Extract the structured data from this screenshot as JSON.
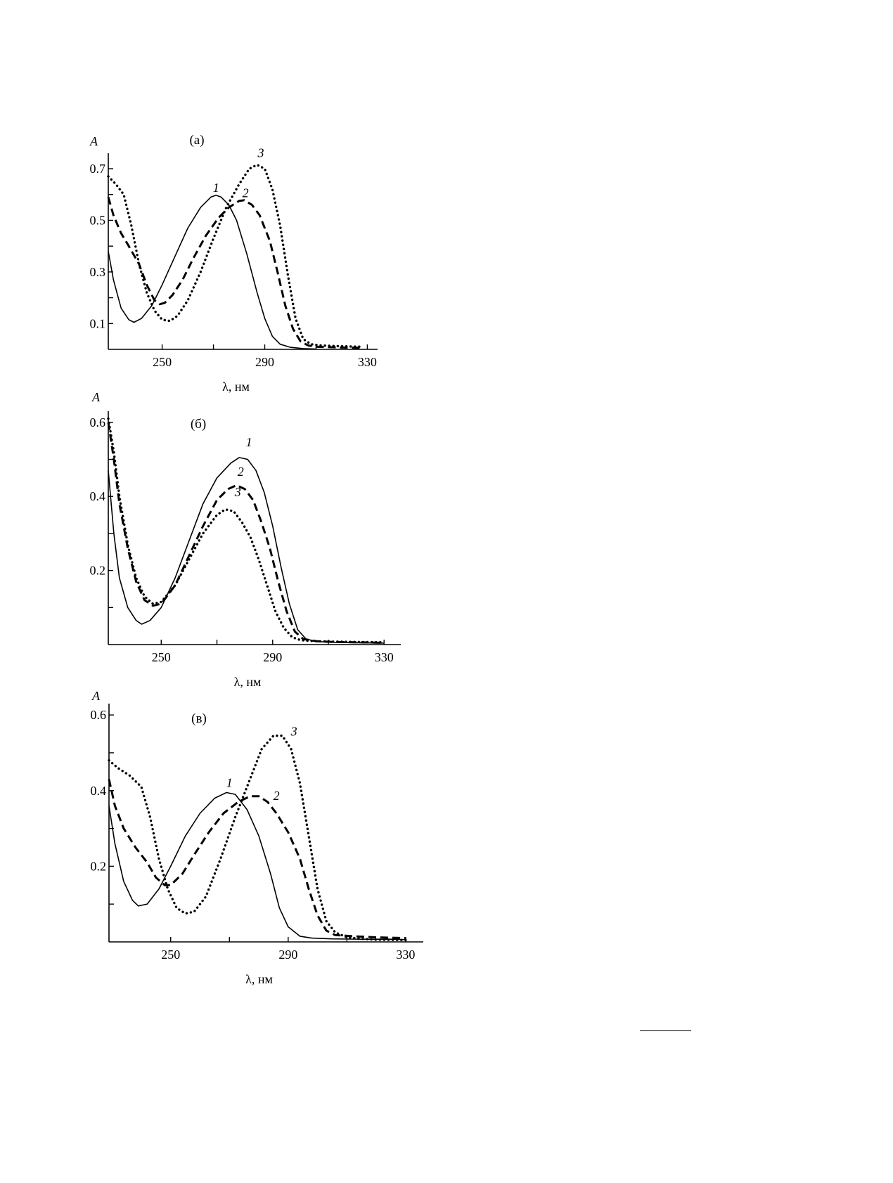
{
  "chart_data": [
    {
      "type": "line",
      "title": "(а)",
      "ylabel": "A",
      "xlabel": "λ, нм",
      "xlim": [
        229,
        334
      ],
      "ylim": [
        0,
        0.76
      ],
      "x_ticks": [
        250,
        290,
        330
      ],
      "y_ticks": [
        0.1,
        0.3,
        0.5,
        0.7
      ],
      "y_minor_ticks": [
        0.2,
        0.4,
        0.6
      ],
      "x_minor_ticks": [
        270,
        310
      ],
      "grid": false,
      "legend": "none",
      "series": [
        {
          "label": "1",
          "style": "solid",
          "label_at": [
            271,
            0.61
          ],
          "points": [
            [
              229,
              0.38
            ],
            [
              231,
              0.27
            ],
            [
              234,
              0.16
            ],
            [
              237,
              0.115
            ],
            [
              239,
              0.105
            ],
            [
              242,
              0.12
            ],
            [
              246,
              0.17
            ],
            [
              250,
              0.25
            ],
            [
              255,
              0.36
            ],
            [
              260,
              0.47
            ],
            [
              265,
              0.55
            ],
            [
              269,
              0.59
            ],
            [
              271,
              0.597
            ],
            [
              273,
              0.59
            ],
            [
              276,
              0.56
            ],
            [
              279,
              0.5
            ],
            [
              283,
              0.37
            ],
            [
              287,
              0.22
            ],
            [
              290,
              0.12
            ],
            [
              293,
              0.05
            ],
            [
              296,
              0.02
            ],
            [
              300,
              0.008
            ],
            [
              305,
              0.003
            ],
            [
              310,
              0.001
            ]
          ]
        },
        {
          "label": "2",
          "style": "dashed",
          "label_at": [
            282.5,
            0.59
          ],
          "points": [
            [
              229,
              0.59
            ],
            [
              231,
              0.52
            ],
            [
              234,
              0.45
            ],
            [
              237,
              0.4
            ],
            [
              241,
              0.33
            ],
            [
              244,
              0.25
            ],
            [
              247,
              0.19
            ],
            [
              249,
              0.175
            ],
            [
              251,
              0.18
            ],
            [
              254,
              0.21
            ],
            [
              258,
              0.27
            ],
            [
              262,
              0.35
            ],
            [
              267,
              0.44
            ],
            [
              272,
              0.51
            ],
            [
              276,
              0.55
            ],
            [
              280,
              0.575
            ],
            [
              282,
              0.578
            ],
            [
              285,
              0.56
            ],
            [
              288,
              0.52
            ],
            [
              292,
              0.42
            ],
            [
              295,
              0.3
            ],
            [
              298,
              0.17
            ],
            [
              301,
              0.08
            ],
            [
              304,
              0.03
            ],
            [
              307,
              0.015
            ],
            [
              310,
              0.01
            ],
            [
              320,
              0.007
            ],
            [
              328,
              0.006
            ]
          ]
        },
        {
          "label": "3",
          "style": "dotted",
          "label_at": [
            288.5,
            0.745
          ],
          "points": [
            [
              229,
              0.67
            ],
            [
              232,
              0.64
            ],
            [
              235,
              0.6
            ],
            [
              238,
              0.48
            ],
            [
              241,
              0.33
            ],
            [
              244,
              0.22
            ],
            [
              247,
              0.15
            ],
            [
              250,
              0.115
            ],
            [
              253,
              0.11
            ],
            [
              256,
              0.13
            ],
            [
              260,
              0.19
            ],
            [
              265,
              0.3
            ],
            [
              270,
              0.43
            ],
            [
              275,
              0.55
            ],
            [
              280,
              0.64
            ],
            [
              284,
              0.7
            ],
            [
              287,
              0.715
            ],
            [
              290,
              0.7
            ],
            [
              293,
              0.62
            ],
            [
              296,
              0.48
            ],
            [
              299,
              0.29
            ],
            [
              302,
              0.12
            ],
            [
              305,
              0.04
            ],
            [
              308,
              0.02
            ],
            [
              312,
              0.015
            ],
            [
              320,
              0.012
            ],
            [
              328,
              0.01
            ]
          ]
        }
      ]
    },
    {
      "type": "line",
      "title": "(б)",
      "ylabel": "A",
      "xlabel": "λ, нм",
      "xlim": [
        231,
        336
      ],
      "ylim": [
        0,
        0.63
      ],
      "x_ticks": [
        250,
        290,
        330
      ],
      "y_ticks": [
        0.2,
        0.4,
        0.6
      ],
      "y_minor_ticks": [
        0.1,
        0.3,
        0.5
      ],
      "x_minor_ticks": [
        270,
        310
      ],
      "grid": false,
      "legend": "none",
      "series": [
        {
          "label": "1",
          "style": "solid",
          "label_at": [
            281.5,
            0.535
          ],
          "points": [
            [
              231,
              0.47
            ],
            [
              233,
              0.3
            ],
            [
              235,
              0.18
            ],
            [
              238,
              0.1
            ],
            [
              241,
              0.065
            ],
            [
              243,
              0.055
            ],
            [
              246,
              0.065
            ],
            [
              250,
              0.1
            ],
            [
              255,
              0.18
            ],
            [
              260,
              0.28
            ],
            [
              265,
              0.38
            ],
            [
              270,
              0.45
            ],
            [
              275,
              0.49
            ],
            [
              278,
              0.505
            ],
            [
              281,
              0.5
            ],
            [
              284,
              0.47
            ],
            [
              287,
              0.41
            ],
            [
              290,
              0.32
            ],
            [
              293,
              0.21
            ],
            [
              296,
              0.11
            ],
            [
              299,
              0.04
            ],
            [
              302,
              0.015
            ],
            [
              306,
              0.008
            ],
            [
              312,
              0.006
            ],
            [
              320,
              0.005
            ],
            [
              330,
              0.004
            ]
          ]
        },
        {
          "label": "2",
          "style": "dashed",
          "label_at": [
            278.5,
            0.455
          ],
          "points": [
            [
              231,
              0.6
            ],
            [
              233,
              0.5
            ],
            [
              235,
              0.38
            ],
            [
              238,
              0.26
            ],
            [
              241,
              0.17
            ],
            [
              244,
              0.12
            ],
            [
              247,
              0.105
            ],
            [
              250,
              0.11
            ],
            [
              255,
              0.16
            ],
            [
              260,
              0.24
            ],
            [
              265,
              0.32
            ],
            [
              270,
              0.39
            ],
            [
              274,
              0.42
            ],
            [
              277,
              0.43
            ],
            [
              280,
              0.42
            ],
            [
              283,
              0.39
            ],
            [
              286,
              0.33
            ],
            [
              289,
              0.26
            ],
            [
              292,
              0.17
            ],
            [
              295,
              0.09
            ],
            [
              298,
              0.035
            ],
            [
              301,
              0.015
            ],
            [
              306,
              0.009
            ],
            [
              312,
              0.007
            ],
            [
              320,
              0.006
            ],
            [
              330,
              0.005
            ]
          ]
        },
        {
          "label": "3",
          "style": "dotted",
          "label_at": [
            277.5,
            0.4
          ],
          "points": [
            [
              231,
              0.61
            ],
            [
              233,
              0.52
            ],
            [
              235,
              0.4
            ],
            [
              238,
              0.27
            ],
            [
              241,
              0.18
            ],
            [
              244,
              0.13
            ],
            [
              247,
              0.11
            ],
            [
              250,
              0.115
            ],
            [
              255,
              0.16
            ],
            [
              260,
              0.23
            ],
            [
              265,
              0.3
            ],
            [
              270,
              0.35
            ],
            [
              273,
              0.365
            ],
            [
              276,
              0.36
            ],
            [
              279,
              0.33
            ],
            [
              282,
              0.29
            ],
            [
              285,
              0.23
            ],
            [
              288,
              0.16
            ],
            [
              291,
              0.09
            ],
            [
              294,
              0.045
            ],
            [
              297,
              0.02
            ],
            [
              300,
              0.012
            ],
            [
              306,
              0.009
            ],
            [
              312,
              0.008
            ],
            [
              320,
              0.007
            ],
            [
              330,
              0.006
            ]
          ]
        }
      ]
    },
    {
      "type": "line",
      "title": "(в)",
      "ylabel": "A",
      "xlabel": "λ, нм",
      "xlim": [
        229,
        336
      ],
      "ylim": [
        0,
        0.63
      ],
      "x_ticks": [
        250,
        290,
        330
      ],
      "y_ticks": [
        0.2,
        0.4,
        0.6
      ],
      "y_minor_ticks": [
        0.1,
        0.3,
        0.5
      ],
      "x_minor_ticks": [
        270,
        310
      ],
      "grid": false,
      "legend": "none",
      "series": [
        {
          "label": "1",
          "style": "solid",
          "label_at": [
            270,
            0.41
          ],
          "points": [
            [
              229,
              0.36
            ],
            [
              231,
              0.26
            ],
            [
              234,
              0.16
            ],
            [
              237,
              0.11
            ],
            [
              239,
              0.095
            ],
            [
              242,
              0.1
            ],
            [
              246,
              0.14
            ],
            [
              250,
              0.2
            ],
            [
              255,
              0.28
            ],
            [
              260,
              0.34
            ],
            [
              265,
              0.38
            ],
            [
              269,
              0.395
            ],
            [
              272,
              0.39
            ],
            [
              276,
              0.35
            ],
            [
              280,
              0.28
            ],
            [
              284,
              0.18
            ],
            [
              287,
              0.09
            ],
            [
              290,
              0.04
            ],
            [
              294,
              0.015
            ],
            [
              298,
              0.01
            ],
            [
              305,
              0.008
            ],
            [
              315,
              0.007
            ],
            [
              325,
              0.007
            ],
            [
              330,
              0.006
            ]
          ]
        },
        {
          "label": "2",
          "style": "dashed",
          "label_at": [
            286,
            0.375
          ],
          "points": [
            [
              229,
              0.43
            ],
            [
              231,
              0.36
            ],
            [
              234,
              0.3
            ],
            [
              238,
              0.25
            ],
            [
              242,
              0.21
            ],
            [
              245,
              0.17
            ],
            [
              248,
              0.15
            ],
            [
              250,
              0.15
            ],
            [
              254,
              0.18
            ],
            [
              258,
              0.23
            ],
            [
              263,
              0.29
            ],
            [
              268,
              0.34
            ],
            [
              273,
              0.37
            ],
            [
              277,
              0.385
            ],
            [
              280,
              0.385
            ],
            [
              283,
              0.37
            ],
            [
              286,
              0.34
            ],
            [
              290,
              0.29
            ],
            [
              294,
              0.22
            ],
            [
              297,
              0.14
            ],
            [
              300,
              0.07
            ],
            [
              303,
              0.03
            ],
            [
              306,
              0.018
            ],
            [
              312,
              0.015
            ],
            [
              320,
              0.012
            ],
            [
              330,
              0.01
            ]
          ]
        },
        {
          "label": "3",
          "style": "dotted",
          "label_at": [
            292,
            0.545
          ],
          "points": [
            [
              229,
              0.48
            ],
            [
              232,
              0.46
            ],
            [
              236,
              0.44
            ],
            [
              240,
              0.41
            ],
            [
              243,
              0.33
            ],
            [
              246,
              0.22
            ],
            [
              249,
              0.14
            ],
            [
              252,
              0.09
            ],
            [
              255,
              0.075
            ],
            [
              258,
              0.08
            ],
            [
              262,
              0.12
            ],
            [
              267,
              0.22
            ],
            [
              272,
              0.33
            ],
            [
              277,
              0.43
            ],
            [
              281,
              0.51
            ],
            [
              285,
              0.545
            ],
            [
              288,
              0.545
            ],
            [
              291,
              0.51
            ],
            [
              294,
              0.42
            ],
            [
              297,
              0.28
            ],
            [
              300,
              0.14
            ],
            [
              303,
              0.055
            ],
            [
              306,
              0.025
            ],
            [
              310,
              0.012
            ],
            [
              315,
              0.008
            ],
            [
              320,
              0.006
            ],
            [
              330,
              0.005
            ]
          ]
        }
      ]
    }
  ]
}
